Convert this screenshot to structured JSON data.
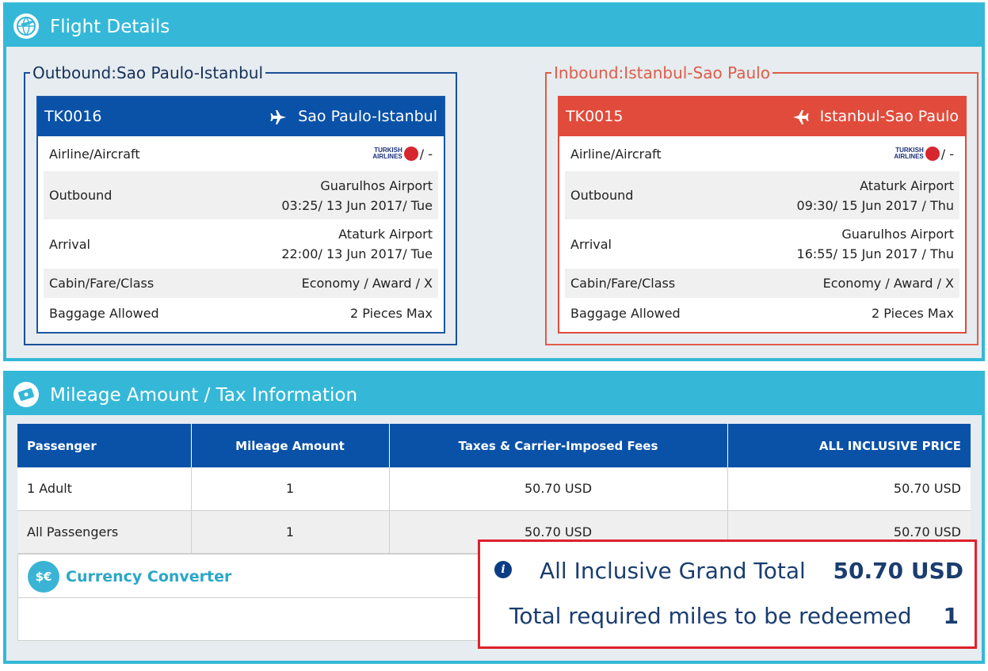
{
  "flight_details": {
    "title": "Flight Details",
    "icon": "plane-globe-icon",
    "outbound": {
      "legend": "Outbound:Sao Paulo-Istanbul",
      "flight_no": "TK0016",
      "route": "Sao Paulo-Istanbul",
      "airline_label": "Airline/Aircraft",
      "airline_logo_text_1": "TURKISH",
      "airline_logo_text_2": "AIRLINES",
      "airline_suffix": "/ -",
      "outbound_label": "Outbound",
      "outbound_airport": "Guarulhos Airport",
      "outbound_time": "03:25/ 13 Jun 2017/ Tue",
      "arrival_label": "Arrival",
      "arrival_airport": "Ataturk Airport",
      "arrival_time": "22:00/ 13 Jun 2017/ Tue",
      "cabin_label": "Cabin/Fare/Class",
      "cabin_value": "Economy / Award / X",
      "baggage_label": "Baggage Allowed",
      "baggage_value": "2 Pieces Max"
    },
    "inbound": {
      "legend": "Inbound:Istanbul-Sao Paulo",
      "flight_no": "TK0015",
      "route": "Istanbul-Sao Paulo",
      "airline_label": "Airline/Aircraft",
      "airline_logo_text_1": "TURKISH",
      "airline_logo_text_2": "AIRLINES",
      "airline_suffix": "/ -",
      "outbound_label": "Outbound",
      "outbound_airport": "Ataturk Airport",
      "outbound_time": "09:30/ 15 Jun 2017 / Thu",
      "arrival_label": "Arrival",
      "arrival_airport": "Guarulhos Airport",
      "arrival_time": "16:55/ 15 Jun 2017 / Thu",
      "cabin_label": "Cabin/Fare/Class",
      "cabin_value": "Economy / Award / X",
      "baggage_label": "Baggage Allowed",
      "baggage_value": "2 Pieces Max"
    }
  },
  "mileage": {
    "title": "Mileage Amount / Tax Information",
    "icon": "ticket-icon",
    "columns": [
      "Passenger",
      "Mileage Amount",
      "Taxes & Carrier-Imposed Fees",
      "ALL INCLUSIVE PRICE"
    ],
    "rows": [
      [
        "1 Adult",
        "1",
        "50.70 USD",
        "50.70 USD"
      ],
      [
        "All Passengers",
        "1",
        "50.70 USD",
        "50.70 USD"
      ]
    ],
    "currency_converter": "Currency Converter",
    "currency_icon_glyph": "$€"
  },
  "totals": {
    "grand_total_label": "All Inclusive Grand Total",
    "grand_total_value": "50.70 USD",
    "miles_label": "Total required miles to be redeemed",
    "miles_value": "1",
    "info_glyph": "i"
  },
  "colors": {
    "header_cyan": "#35b8d8",
    "outbound_blue": "#0a52a8",
    "inbound_red": "#e14b3b",
    "highlight_red": "#e0202c"
  }
}
